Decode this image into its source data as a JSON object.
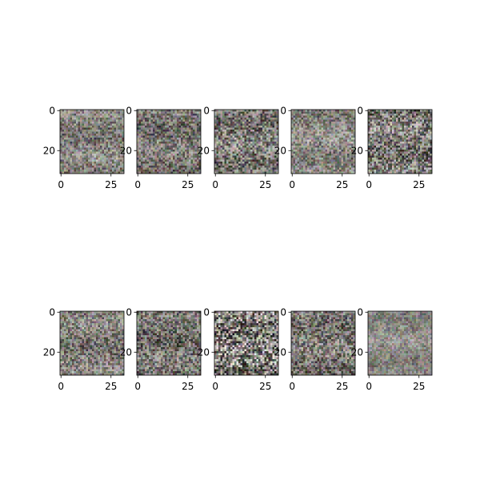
{
  "chart_data": {
    "type": "heatmap",
    "title": "",
    "layout": {
      "rows": 2,
      "cols": 5
    },
    "image_size": [
      32,
      32
    ],
    "content": "noisy RGB image samples",
    "axes": [
      {
        "id": 1,
        "palette": [
          "#7d7b75",
          "#8f8c86",
          "#6a6661",
          "#9d9a94",
          "#585450",
          "#a6a39d"
        ],
        "xticks": [
          0,
          25
        ],
        "yticks": [
          0,
          20
        ]
      },
      {
        "id": 2,
        "palette": [
          "#6f6c67",
          "#85827c",
          "#5d5955",
          "#97948e",
          "#4e4a47",
          "#a09d97"
        ],
        "xticks": [
          0,
          25
        ],
        "yticks": [
          0,
          20
        ]
      },
      {
        "id": 3,
        "palette": [
          "#777470",
          "#8c8983",
          "#5f5b57",
          "#a3a09a",
          "#44413e",
          "#b0ada7"
        ],
        "xticks": [
          0,
          25
        ],
        "yticks": [
          0,
          20
        ]
      },
      {
        "id": 4,
        "palette": [
          "#86837d",
          "#96938d",
          "#72706a",
          "#a4a19b",
          "#65625d",
          "#aeaba5"
        ],
        "xticks": [
          0,
          25
        ],
        "yticks": [
          0,
          20
        ]
      },
      {
        "id": 5,
        "palette": [
          "#72706b",
          "#8a8781",
          "#55524e",
          "#a19e98",
          "#403d3a",
          "#b8b5af"
        ],
        "xticks": [
          0,
          25
        ],
        "yticks": [
          0,
          20
        ]
      },
      {
        "id": 6,
        "palette": [
          "#7a7772",
          "#8e8b85",
          "#64605c",
          "#9e9b95",
          "#514e4a",
          "#aaa7a1"
        ],
        "xticks": [
          0,
          25
        ],
        "yticks": [
          0,
          20
        ]
      },
      {
        "id": 7,
        "palette": [
          "#6c6964",
          "#807d77",
          "#54514d",
          "#96938d",
          "#403e3b",
          "#a4a19b"
        ],
        "xticks": [
          0,
          25
        ],
        "yticks": [
          0,
          20
        ]
      },
      {
        "id": 8,
        "palette": [
          "#6e6b66",
          "#8a8781",
          "#4a4744",
          "#b4b1ab",
          "#2e2c2a",
          "#d6d3cd"
        ],
        "xticks": [
          0,
          25
        ],
        "yticks": [
          0,
          20
        ]
      },
      {
        "id": 9,
        "palette": [
          "#75726d",
          "#89867f",
          "#5b5854",
          "#9c9993",
          "#46433f",
          "#aba8a2"
        ],
        "xticks": [
          0,
          25
        ],
        "yticks": [
          0,
          20
        ]
      },
      {
        "id": 10,
        "palette": [
          "#8a8883",
          "#93918c",
          "#7e7c77",
          "#9d9b96",
          "#74726d",
          "#a3a19c"
        ],
        "xticks": [
          0,
          25
        ],
        "yticks": [
          0,
          20
        ]
      }
    ]
  }
}
